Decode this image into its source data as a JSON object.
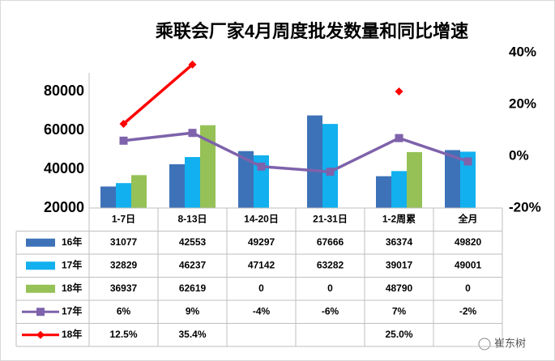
{
  "chart_data": {
    "type": "bar",
    "title": "乘联会厂家4月周度批发数量和同比增速",
    "categories": [
      "1-7日",
      "8-13日",
      "14-20日",
      "21-31日",
      "1-2周累",
      "全月"
    ],
    "series": [
      {
        "name": "16年",
        "color": "#3d72b8",
        "values": [
          31077,
          42553,
          49297,
          67666,
          36374,
          49820
        ]
      },
      {
        "name": "17年",
        "color": "#12b0ef",
        "values": [
          32829,
          46237,
          47142,
          63282,
          39017,
          49001
        ]
      },
      {
        "name": "18年",
        "color": "#96c156",
        "values": [
          36937,
          62619,
          0,
          0,
          48790,
          0
        ]
      },
      {
        "name": "17年",
        "type": "line",
        "axis": "y2",
        "color": "#7e62ab",
        "marker": "square",
        "values": [
          6,
          9,
          -4,
          -6,
          7,
          -2
        ],
        "value_labels": [
          "6%",
          "9%",
          "-4%",
          "-6%",
          "7%",
          "-2%"
        ]
      },
      {
        "name": "18年",
        "type": "line",
        "axis": "y2",
        "color": "#ff0000",
        "marker": "diamond",
        "values": [
          12.5,
          35.4,
          null,
          null,
          25.0,
          null
        ],
        "value_labels": [
          "12.5%",
          "35.4%",
          null,
          null,
          "25.0%",
          null
        ]
      }
    ],
    "ylim": [
      20000,
      100000
    ],
    "yticks": [
      20000,
      40000,
      60000,
      80000
    ],
    "y2lim": [
      -20,
      40
    ],
    "y2ticks": [
      {
        "value": -20,
        "label": "-20%"
      },
      {
        "value": 0,
        "label": "0%"
      },
      {
        "value": 20,
        "label": "20%"
      },
      {
        "value": 40,
        "label": "40%"
      }
    ],
    "watermark": "崔东树"
  }
}
